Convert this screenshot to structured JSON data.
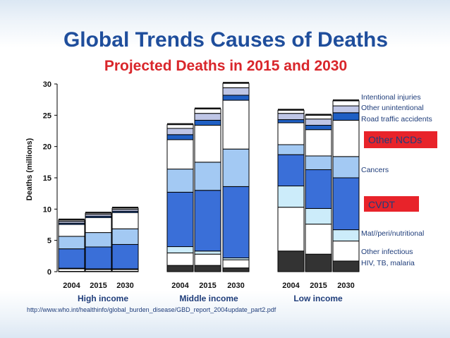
{
  "colors": {
    "title": "#1f4e9c",
    "subtitle": "#d9262b",
    "label": "#1f3d7a",
    "highlight_box": "#e8232a"
  },
  "chart_data": {
    "type": "bar",
    "stacked": true,
    "title": "Global Trends Causes of Deaths",
    "subtitle": "Projected Deaths in 2015 and 2030",
    "ylabel": "Deaths (millions)",
    "ylim": [
      0,
      30
    ],
    "yticks": [
      0,
      5,
      10,
      15,
      20,
      25,
      30
    ],
    "groups": [
      "High income",
      "Middle income",
      "Low income"
    ],
    "categories": [
      "2004",
      "2015",
      "2030",
      "2004",
      "2015",
      "2030",
      "2004",
      "2015",
      "2030"
    ],
    "series": [
      {
        "name": "HIV, TB, malaria",
        "color": "#333333",
        "values": [
          0.05,
          0.05,
          0.05,
          1.0,
          1.0,
          0.6,
          3.3,
          2.8,
          1.7
        ]
      },
      {
        "name": "Other infectious",
        "color": "#ffffff",
        "values": [
          0.4,
          0.3,
          0.3,
          2.0,
          1.8,
          1.3,
          7.0,
          4.8,
          3.2
        ]
      },
      {
        "name": "Mat//peri/nutritional",
        "color": "#ccecfa",
        "values": [
          0.1,
          0.1,
          0.1,
          1.0,
          0.5,
          0.3,
          3.4,
          2.5,
          1.8
        ]
      },
      {
        "name": "CVDT",
        "color": "#3a6fd8",
        "values": [
          3.1,
          3.5,
          3.9,
          8.7,
          9.7,
          11.4,
          5.0,
          6.2,
          8.3
        ]
      },
      {
        "name": "Cancers",
        "color": "#a3c9f3",
        "values": [
          2.0,
          2.3,
          2.5,
          3.7,
          4.5,
          6.0,
          1.6,
          2.2,
          3.4
        ]
      },
      {
        "name": "Other NCDs",
        "color": "#ffffff",
        "values": [
          1.9,
          2.4,
          2.6,
          4.7,
          5.9,
          7.8,
          3.5,
          4.2,
          5.8
        ]
      },
      {
        "name": "Road traffic accidents",
        "color": "#1f5fc4",
        "values": [
          0.2,
          0.2,
          0.2,
          0.8,
          0.8,
          0.8,
          0.5,
          0.7,
          1.2
        ]
      },
      {
        "name": "Other unintentional",
        "color": "#bfc6e6",
        "values": [
          0.3,
          0.3,
          0.3,
          1.0,
          1.1,
          1.2,
          1.0,
          1.0,
          1.1
        ]
      },
      {
        "name": "Intentional injuries",
        "color": "#ffffff",
        "values": [
          0.2,
          0.2,
          0.2,
          0.6,
          0.7,
          0.7,
          0.5,
          0.6,
          0.8
        ]
      }
    ],
    "legend_labels": {
      "intentional": "Intentional injuries",
      "other_unintentional": "Other unintentional",
      "road": "Road traffic accidents",
      "other_ncds": "Other NCDs",
      "cancers": "Cancers",
      "cvdt": "CVDT",
      "mat": "Mat//peri/nutritional",
      "other_infectious": "Other infectious",
      "hiv": "HIV, TB, malaria"
    },
    "source": "http://www.who.int/healthinfo/global_burden_disease/GBD_report_2004update_part2.pdf"
  }
}
